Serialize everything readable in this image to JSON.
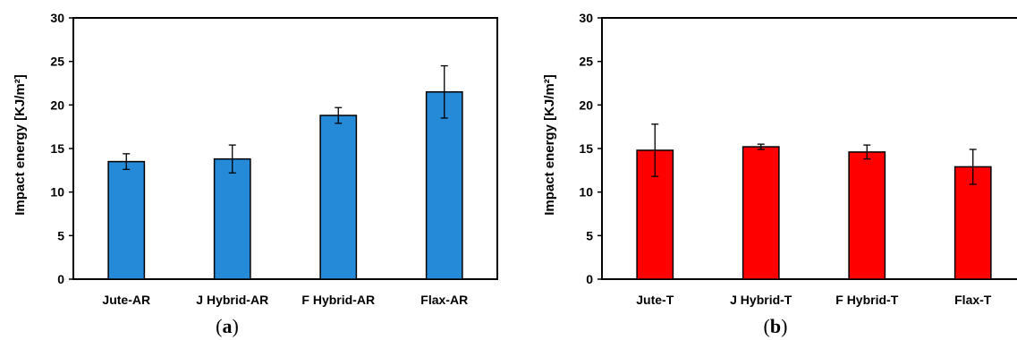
{
  "chart_data": [
    {
      "type": "bar",
      "panel_label": "a",
      "categories": [
        "Jute-AR",
        "J Hybrid-AR",
        "F Hybrid-AR",
        "Flax-AR"
      ],
      "values": [
        13.5,
        13.8,
        18.8,
        21.5
      ],
      "errors": [
        0.9,
        1.6,
        0.9,
        3.0
      ],
      "ylabel": "Impact energy [KJ/m²]",
      "ylim": [
        0,
        30
      ],
      "yticks": [
        0,
        5,
        10,
        15,
        20,
        25,
        30
      ],
      "color": "#258ad8",
      "grid": false
    },
    {
      "type": "bar",
      "panel_label": "b",
      "categories": [
        "Jute-T",
        "J Hybrid-T",
        "F Hybrid-T",
        "Flax-T"
      ],
      "values": [
        14.8,
        15.2,
        14.6,
        12.9
      ],
      "errors": [
        3.0,
        0.3,
        0.8,
        2.0
      ],
      "ylabel": "Impact energy [KJ/m²]",
      "ylim": [
        0,
        30
      ],
      "yticks": [
        0,
        5,
        10,
        15,
        20,
        25,
        30
      ],
      "color": "#ff0000",
      "grid": false
    }
  ]
}
